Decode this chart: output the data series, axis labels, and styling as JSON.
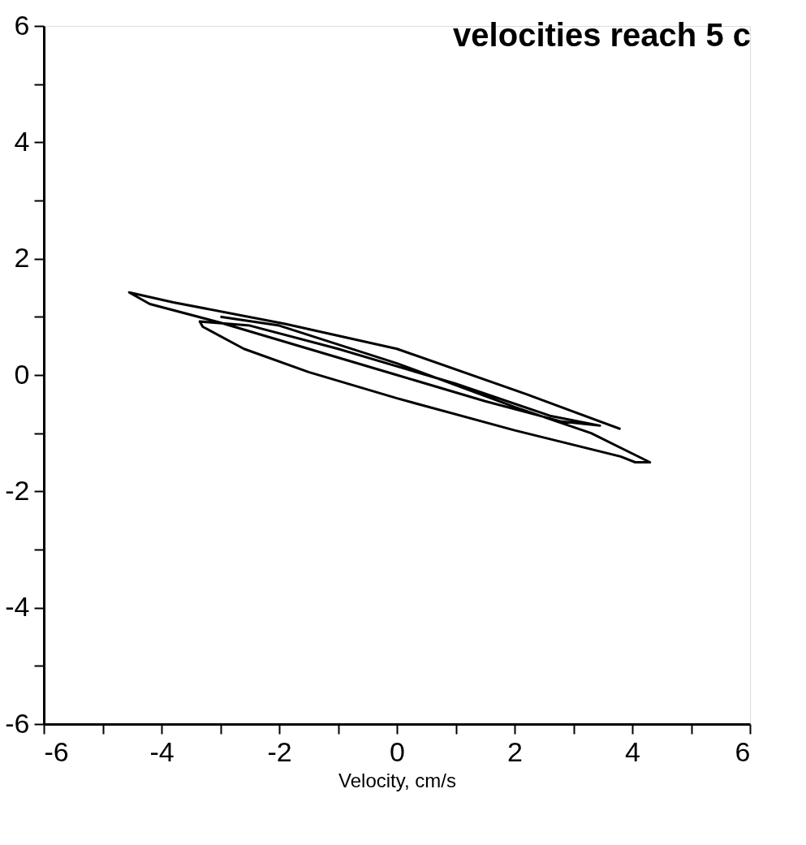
{
  "chart_data": {
    "type": "line",
    "title": "velocities reach 5 c",
    "xlabel": "Velocity, cm/s",
    "xlim": [
      -6,
      6
    ],
    "ylim": [
      -6,
      6
    ],
    "xticks": [
      -6,
      {
        "value": -5,
        "label": null
      },
      -4,
      {
        "value": -3,
        "label": null
      },
      -2,
      {
        "value": -1,
        "label": null
      },
      0,
      {
        "value": 1,
        "label": null
      },
      2,
      {
        "value": 3,
        "label": null
      },
      4,
      {
        "value": 5,
        "label": null
      },
      6
    ],
    "yticks": [
      -6,
      {
        "value": -5,
        "label": null
      },
      -4,
      {
        "value": -3,
        "label": null
      },
      -2,
      {
        "value": -1,
        "label": null
      },
      0,
      {
        "value": 1,
        "label": null
      },
      2,
      {
        "value": 3,
        "label": null
      },
      4,
      {
        "value": 5,
        "label": null
      },
      6
    ],
    "grid": false,
    "legend": false,
    "marker": "none",
    "line_style": "solid",
    "series": [
      {
        "color": "#000000",
        "x": [
          3.8,
          2.2,
          0,
          -1.9,
          -3.8,
          -4.55,
          -4.2,
          -3.0,
          -1.5,
          0,
          1.5,
          2.8,
          3.45,
          2.6,
          1.0,
          -1.0,
          -2.5,
          -3.35,
          -3.3,
          -2.6,
          -1.5,
          0,
          2.0,
          3.8,
          4.05,
          4.3,
          3.3,
          2.0,
          0,
          -2.0,
          -3.0
        ],
        "values": [
          -0.93,
          -0.33,
          0.45,
          0.88,
          1.25,
          1.42,
          1.22,
          0.9,
          0.45,
          0,
          -0.45,
          -0.8,
          -0.87,
          -0.7,
          -0.15,
          0.45,
          0.85,
          0.92,
          0.83,
          0.45,
          0.05,
          -0.4,
          -0.95,
          -1.4,
          -1.5,
          -1.5,
          -1.0,
          -0.55,
          0.2,
          0.85,
          1.0
        ]
      }
    ]
  }
}
